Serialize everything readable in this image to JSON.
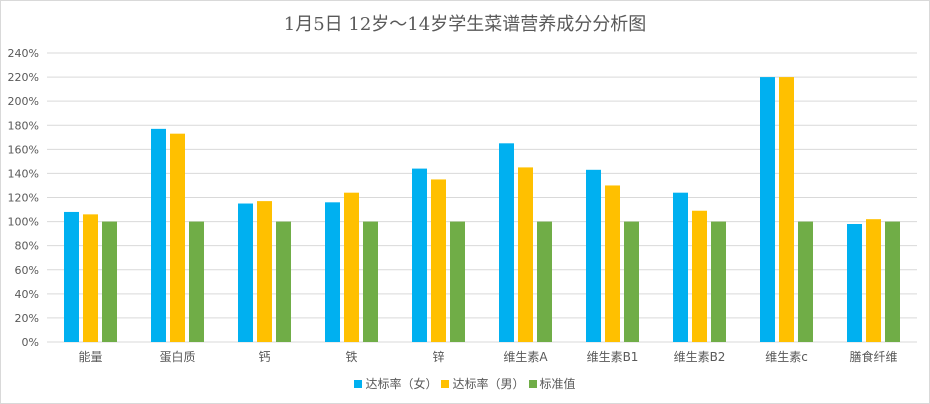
{
  "chart_data": {
    "type": "bar",
    "title": "1月5日 12岁～14岁学生菜谱营养成分分析图",
    "categories": [
      "能量",
      "蛋白质",
      "钙",
      "铁",
      "锌",
      "维生素A",
      "维生素B1",
      "维生素B2",
      "维生素c",
      "膳食纤维"
    ],
    "series": [
      {
        "name": "达标率（女）",
        "color": "#00b0f0",
        "values": [
          108,
          177,
          115,
          116,
          144,
          165,
          143,
          124,
          220,
          98
        ]
      },
      {
        "name": "达标率（男）",
        "color": "#ffc000",
        "values": [
          106,
          173,
          117,
          124,
          135,
          145,
          130,
          109,
          220,
          102
        ]
      },
      {
        "name": "标准值",
        "color": "#70ad47",
        "values": [
          100,
          100,
          100,
          100,
          100,
          100,
          100,
          100,
          100,
          100
        ]
      }
    ],
    "ylim": [
      0,
      240
    ],
    "ytick_step": 20,
    "ytick_suffix": "%",
    "grid": true,
    "legend_position": "bottom"
  }
}
